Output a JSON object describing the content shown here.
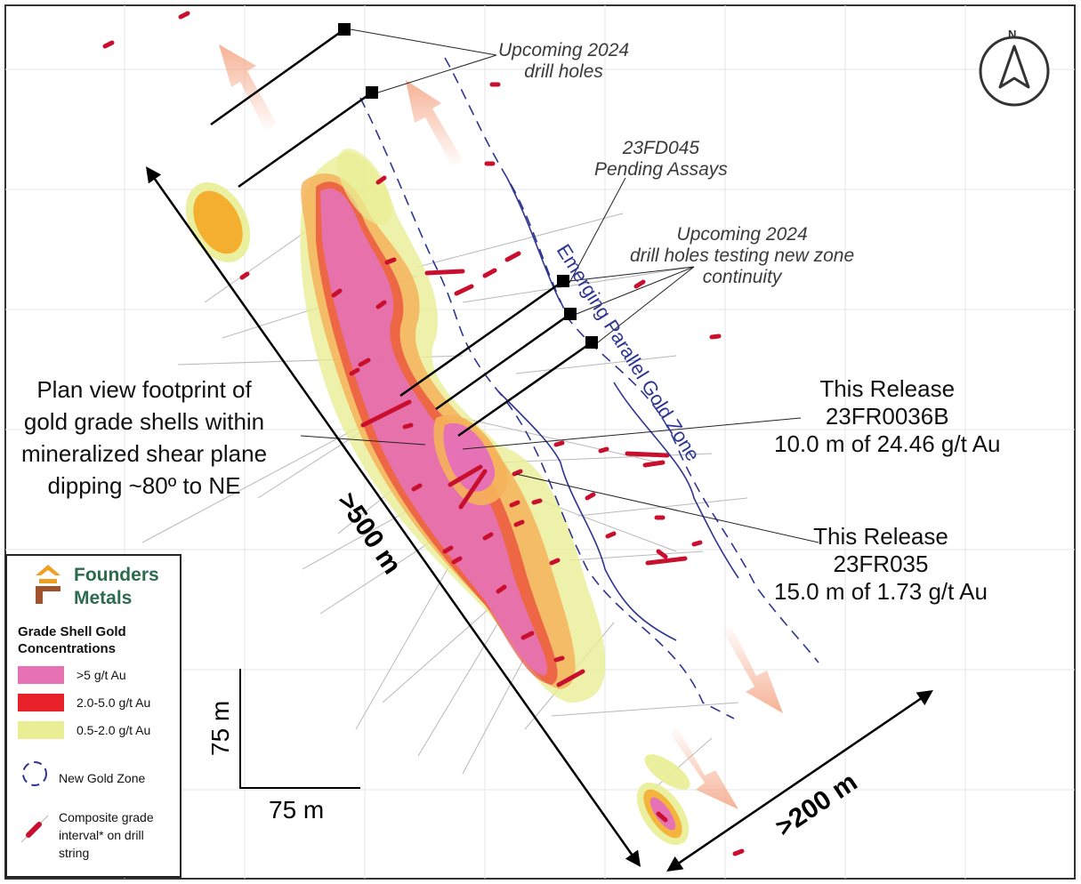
{
  "annotations": {
    "upcoming_top": [
      "Upcoming 2024",
      "drill holes"
    ],
    "pending": [
      "23FD045",
      "Pending Assays"
    ],
    "upcoming_mid": [
      "Upcoming 2024",
      "drill holes testing new zone",
      "continuity"
    ],
    "plan_view": [
      "Plan view footprint of",
      "gold grade shells within",
      "mineralized shear plane",
      "dipping ~80º to NE"
    ],
    "release_1": [
      "This Release",
      "23FR0036B",
      "10.0 m of 24.46 g/t Au"
    ],
    "release_2": [
      "This Release",
      "23FR035",
      "15.0 m of 1.73 g/t Au"
    ],
    "zone_label": "Emerging Parallel Gold Zone",
    "dim_long": ">500 m",
    "dim_short": ">200 m",
    "scale_v": "75 m",
    "scale_h": "75 m"
  },
  "north_arrow": {
    "label": "N",
    "icon": "north-arrow-icon"
  },
  "legend": {
    "company": [
      "Founders",
      "Metals"
    ],
    "title": [
      "Grade Shell Gold",
      "Concentrations"
    ],
    "items": [
      {
        "label": ">5 g/t Au",
        "color": "#e672b5"
      },
      {
        "label": "2.0-5.0 g/t Au",
        "color": "#e8202a"
      },
      {
        "label": "0.5-2.0 g/t Au",
        "color": "#e9ee94"
      }
    ],
    "zone": "New Gold Zone",
    "interval": [
      "Composite grade",
      "interval* on drill",
      "string"
    ]
  },
  "colors": {
    "zone_line": "#2e3590",
    "arrow_fill": "#f5a98a",
    "grade_high": "#e672b5",
    "grade_mid": "#e8202a",
    "grade_low": "#e9ee94",
    "grade_orange": "#f5a623",
    "brand_green": "#2d6b4f",
    "brand_orange": "#f0a020"
  }
}
